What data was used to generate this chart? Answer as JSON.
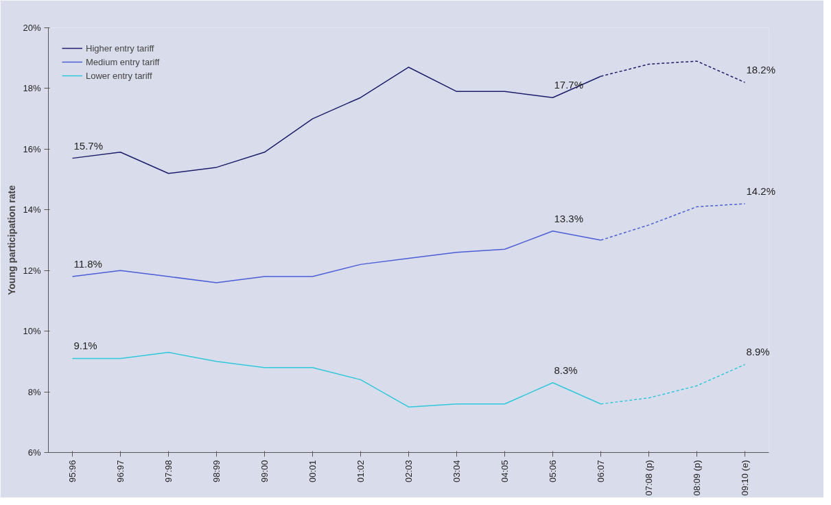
{
  "chart_data": {
    "type": "line",
    "ylabel": "Young participation rate",
    "categories": [
      "95:96",
      "96:97",
      "97:98",
      "98:99",
      "99:00",
      "00:01",
      "01:02",
      "02:03",
      "03:04",
      "04:05",
      "05:06",
      "06:07",
      "07:08 (p)",
      "08:09 (p)",
      "09:10 (e)"
    ],
    "ylim": [
      6,
      20
    ],
    "yticks": [
      {
        "value": 6,
        "label": "6%"
      },
      {
        "value": 8,
        "label": "8%"
      },
      {
        "value": 10,
        "label": "10%"
      },
      {
        "value": 12,
        "label": "12%"
      },
      {
        "value": 14,
        "label": "14%"
      },
      {
        "value": 16,
        "label": "16%"
      },
      {
        "value": 18,
        "label": "18%"
      },
      {
        "value": 20,
        "label": "20%"
      }
    ],
    "grid": false,
    "legend": "top left",
    "marker": "none",
    "series": [
      {
        "name": "Higher entry tariff",
        "color": "#1c1c6b",
        "line_style": "solid",
        "values": [
          15.7,
          15.9,
          15.2,
          15.4,
          15.9,
          17.0,
          17.7,
          18.7,
          17.9,
          17.9,
          17.7,
          18.4,
          null,
          null,
          null
        ],
        "value_labels": [
          "15.7%",
          null,
          null,
          null,
          null,
          null,
          null,
          null,
          null,
          null,
          "17.7%",
          null,
          null,
          null,
          null
        ]
      },
      {
        "color": "#1c1c6b",
        "line_style": "dashed",
        "values": [
          null,
          null,
          null,
          null,
          null,
          null,
          null,
          null,
          null,
          null,
          null,
          18.4,
          18.8,
          18.9,
          18.2
        ],
        "value_labels": [
          null,
          null,
          null,
          null,
          null,
          null,
          null,
          null,
          null,
          null,
          null,
          null,
          null,
          null,
          "18.2%"
        ]
      },
      {
        "name": "Medium entry tariff",
        "color": "#4a5ed8",
        "line_style": "solid",
        "values": [
          11.8,
          12.0,
          11.8,
          11.6,
          11.8,
          11.8,
          12.2,
          12.4,
          12.6,
          12.7,
          13.3,
          13.0,
          null,
          null,
          null
        ],
        "value_labels": [
          "11.8%",
          null,
          null,
          null,
          null,
          null,
          null,
          null,
          null,
          null,
          "13.3%",
          null,
          null,
          null,
          null
        ]
      },
      {
        "color": "#4a5ed8",
        "line_style": "dashed",
        "values": [
          null,
          null,
          null,
          null,
          null,
          null,
          null,
          null,
          null,
          null,
          null,
          13.0,
          13.5,
          14.1,
          14.2
        ],
        "value_labels": [
          null,
          null,
          null,
          null,
          null,
          null,
          null,
          null,
          null,
          null,
          null,
          null,
          null,
          null,
          "14.2%"
        ]
      },
      {
        "name": "Lower entry tariff",
        "color": "#2ec8dc",
        "line_style": "solid",
        "values": [
          9.1,
          9.1,
          9.3,
          9.0,
          8.8,
          8.8,
          8.4,
          7.5,
          7.6,
          7.6,
          8.3,
          7.6,
          null,
          null,
          null
        ],
        "value_labels": [
          "9.1%",
          null,
          null,
          null,
          null,
          null,
          null,
          null,
          null,
          null,
          "8.3%",
          null,
          null,
          null,
          null
        ]
      },
      {
        "color": "#2ec8dc",
        "line_style": "dashed",
        "values": [
          null,
          null,
          null,
          null,
          null,
          null,
          null,
          null,
          null,
          null,
          null,
          7.6,
          7.8,
          8.2,
          8.9
        ],
        "value_labels": [
          null,
          null,
          null,
          null,
          null,
          null,
          null,
          null,
          null,
          null,
          null,
          null,
          null,
          null,
          "8.9%"
        ]
      }
    ]
  }
}
